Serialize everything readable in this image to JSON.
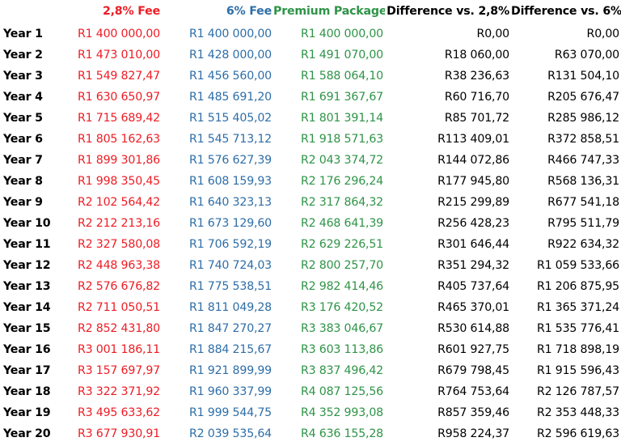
{
  "columns": {
    "year": "",
    "fee_28": "2,8% Fee",
    "fee_6": "6% Fee",
    "premium": "Premium Package",
    "diff_28": "Difference vs. 2,8%",
    "diff_6": "Difference vs. 6%"
  },
  "colors": {
    "fee_28": "#ee1c24",
    "fee_6": "#2e6ea8",
    "premium": "#2e9447",
    "difference": "#000000"
  },
  "rows": [
    {
      "year": "Year 1",
      "fee_28": "R1 400 000,00",
      "fee_6": "R1 400 000,00",
      "premium": "R1 400 000,00",
      "diff_28": "R0,00",
      "diff_6": "R0,00"
    },
    {
      "year": "Year 2",
      "fee_28": "R1 473 010,00",
      "fee_6": "R1 428 000,00",
      "premium": "R1 491 070,00",
      "diff_28": "R18 060,00",
      "diff_6": "R63 070,00"
    },
    {
      "year": "Year 3",
      "fee_28": "R1 549 827,47",
      "fee_6": "R1 456 560,00",
      "premium": "R1 588 064,10",
      "diff_28": "R38 236,63",
      "diff_6": "R131 504,10"
    },
    {
      "year": "Year 4",
      "fee_28": "R1 630 650,97",
      "fee_6": "R1 485 691,20",
      "premium": "R1 691 367,67",
      "diff_28": "R60 716,70",
      "diff_6": "R205 676,47"
    },
    {
      "year": "Year 5",
      "fee_28": "R1 715 689,42",
      "fee_6": "R1 515 405,02",
      "premium": "R1 801 391,14",
      "diff_28": "R85 701,72",
      "diff_6": "R285 986,12"
    },
    {
      "year": "Year 6",
      "fee_28": "R1 805 162,63",
      "fee_6": "R1 545 713,12",
      "premium": "R1 918 571,63",
      "diff_28": "R113 409,01",
      "diff_6": "R372 858,51"
    },
    {
      "year": "Year 7",
      "fee_28": "R1 899 301,86",
      "fee_6": "R1 576 627,39",
      "premium": "R2 043 374,72",
      "diff_28": "R144 072,86",
      "diff_6": "R466 747,33"
    },
    {
      "year": "Year 8",
      "fee_28": "R1 998 350,45",
      "fee_6": "R1 608 159,93",
      "premium": "R2 176 296,24",
      "diff_28": "R177 945,80",
      "diff_6": "R568 136,31"
    },
    {
      "year": "Year 9",
      "fee_28": "R2 102 564,42",
      "fee_6": "R1 640 323,13",
      "premium": "R2 317 864,32",
      "diff_28": "R215 299,89",
      "diff_6": "R677 541,18"
    },
    {
      "year": "Year 10",
      "fee_28": "R2 212 213,16",
      "fee_6": "R1 673 129,60",
      "premium": "R2 468 641,39",
      "diff_28": "R256 428,23",
      "diff_6": "R795 511,79"
    },
    {
      "year": "Year 11",
      "fee_28": "R2 327 580,08",
      "fee_6": "R1 706 592,19",
      "premium": "R2 629 226,51",
      "diff_28": "R301 646,44",
      "diff_6": "R922 634,32"
    },
    {
      "year": "Year 12",
      "fee_28": "R2 448 963,38",
      "fee_6": "R1 740 724,03",
      "premium": "R2 800 257,70",
      "diff_28": "R351 294,32",
      "diff_6": "R1 059 533,66"
    },
    {
      "year": "Year 13",
      "fee_28": "R2 576 676,82",
      "fee_6": "R1 775 538,51",
      "premium": "R2 982 414,46",
      "diff_28": "R405 737,64",
      "diff_6": "R1 206 875,95"
    },
    {
      "year": "Year 14",
      "fee_28": "R2 711 050,51",
      "fee_6": "R1 811 049,28",
      "premium": "R3 176 420,52",
      "diff_28": "R465 370,01",
      "diff_6": "R1 365 371,24"
    },
    {
      "year": "Year 15",
      "fee_28": "R2 852 431,80",
      "fee_6": "R1 847 270,27",
      "premium": "R3 383 046,67",
      "diff_28": "R530 614,88",
      "diff_6": "R1 535 776,41"
    },
    {
      "year": "Year 16",
      "fee_28": "R3 001 186,11",
      "fee_6": "R1 884 215,67",
      "premium": "R3 603 113,86",
      "diff_28": "R601 927,75",
      "diff_6": "R1 718 898,19"
    },
    {
      "year": "Year 17",
      "fee_28": "R3 157 697,97",
      "fee_6": "R1 921 899,99",
      "premium": "R3 837 496,42",
      "diff_28": "R679 798,45",
      "diff_6": "R1 915 596,43"
    },
    {
      "year": "Year 18",
      "fee_28": "R3 322 371,92",
      "fee_6": "R1 960 337,99",
      "premium": "R4 087 125,56",
      "diff_28": "R764 753,64",
      "diff_6": "R2 126 787,57"
    },
    {
      "year": "Year 19",
      "fee_28": "R3 495 633,62",
      "fee_6": "R1 999 544,75",
      "premium": "R4 352 993,08",
      "diff_28": "R857 359,46",
      "diff_6": "R2 353 448,33"
    },
    {
      "year": "Year 20",
      "fee_28": "R3 677 930,91",
      "fee_6": "R2 039 535,64",
      "premium": "R4 636 155,28",
      "diff_28": "R958 224,37",
      "diff_6": "R2 596 619,63"
    }
  ]
}
